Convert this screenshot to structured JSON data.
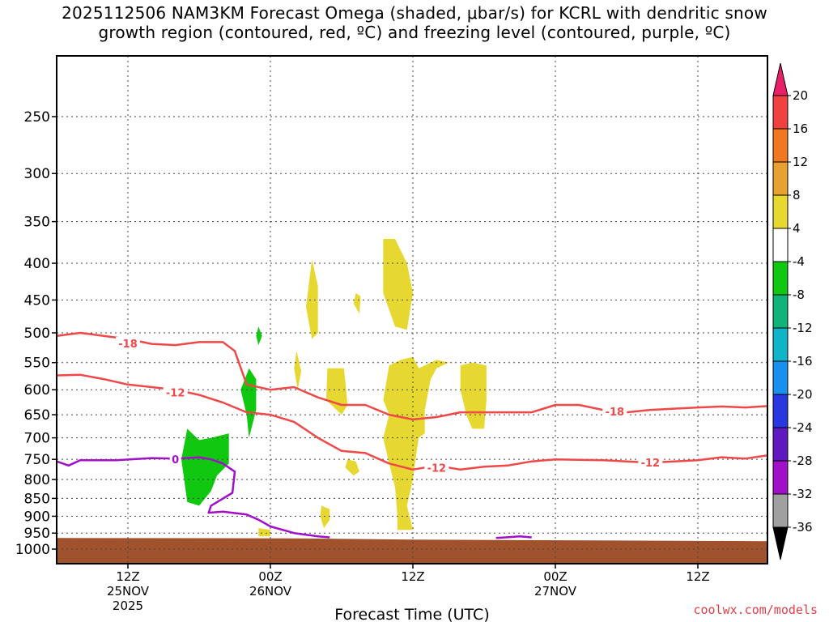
{
  "title_line1": "2025112506 NAM3KM Forecast Omega (shaded, μbar/s) for KCRL with dendritic snow",
  "title_line2": "growth region (contoured, red, ºC) and freezing level (contoured, purple, ºC)",
  "footer": "coolwx.com/models",
  "chart_data": {
    "type": "time-height cross section",
    "xlabel": "Forecast Time (UTC)",
    "ylabel": "",
    "y_scale": "log (pressure, hPa, inverted)",
    "y_ticks": [
      250,
      300,
      350,
      400,
      450,
      500,
      550,
      600,
      650,
      700,
      750,
      800,
      850,
      900,
      950,
      1000
    ],
    "x_ticks": [
      {
        "hour": 6,
        "lines": [
          "12Z",
          "25NOV",
          "2025"
        ]
      },
      {
        "hour": 18,
        "lines": [
          "00Z",
          "26NOV"
        ]
      },
      {
        "hour": 30,
        "lines": [
          "12Z"
        ]
      },
      {
        "hour": 42,
        "lines": [
          "00Z",
          "27NOV"
        ]
      },
      {
        "hour": 54,
        "lines": [
          "12Z"
        ]
      }
    ],
    "grid": "dotted",
    "colorbar": {
      "labels": [
        "20",
        "16",
        "12",
        "8",
        "4",
        "-4",
        "-8",
        "-12",
        "-16",
        "-20",
        "-24",
        "-28",
        "-32",
        "-36"
      ],
      "colors": [
        "#e8206a",
        "#f04040",
        "#f07820",
        "#e8a030",
        "#e6d830",
        "#ffffff",
        "#10c810",
        "#10b478",
        "#10b4c8",
        "#1890f0",
        "#2838e0",
        "#6018c0",
        "#a010c8",
        "#a0a0a0",
        "#000000"
      ]
    },
    "contours": [
      {
        "name": "-18",
        "color": "#f04848",
        "points": [
          [
            0,
            505
          ],
          [
            2,
            500
          ],
          [
            6,
            510
          ],
          [
            8,
            518
          ],
          [
            10,
            520
          ],
          [
            12,
            515
          ],
          [
            14,
            515
          ],
          [
            15,
            530
          ],
          [
            16,
            590
          ],
          [
            18,
            600
          ],
          [
            20,
            595
          ],
          [
            22,
            615
          ],
          [
            24,
            630
          ],
          [
            26,
            630
          ],
          [
            28,
            650
          ],
          [
            30,
            660
          ],
          [
            32,
            655
          ],
          [
            34,
            645
          ],
          [
            36,
            645
          ],
          [
            40,
            645
          ],
          [
            42,
            630
          ],
          [
            44,
            630
          ],
          [
            46,
            640
          ],
          [
            48,
            645
          ],
          [
            50,
            640
          ],
          [
            54,
            635
          ],
          [
            56,
            633
          ],
          [
            58,
            635
          ],
          [
            60,
            632
          ]
        ],
        "labels": [
          [
            6,
            517
          ],
          [
            47,
            643
          ]
        ]
      },
      {
        "name": "-12",
        "color": "#f04848",
        "points": [
          [
            0,
            573
          ],
          [
            2,
            572
          ],
          [
            4,
            580
          ],
          [
            6,
            590
          ],
          [
            8,
            595
          ],
          [
            10,
            600
          ],
          [
            12,
            610
          ],
          [
            14,
            625
          ],
          [
            16,
            645
          ],
          [
            18,
            650
          ],
          [
            20,
            665
          ],
          [
            22,
            700
          ],
          [
            24,
            730
          ],
          [
            26,
            735
          ],
          [
            28,
            760
          ],
          [
            30,
            775
          ],
          [
            32,
            765
          ],
          [
            34,
            775
          ],
          [
            36,
            768
          ],
          [
            38,
            765
          ],
          [
            40,
            755
          ],
          [
            42,
            750
          ],
          [
            46,
            752
          ],
          [
            50,
            758
          ],
          [
            54,
            752
          ],
          [
            56,
            745
          ],
          [
            58,
            748
          ],
          [
            60,
            740
          ]
        ],
        "labels": [
          [
            10,
            605
          ],
          [
            32,
            770
          ],
          [
            50,
            757
          ]
        ]
      },
      {
        "name": "0",
        "color": "#a010c8",
        "points": [
          [
            0,
            755
          ],
          [
            1,
            765
          ],
          [
            2,
            752
          ],
          [
            5,
            752
          ],
          [
            8,
            747
          ],
          [
            10,
            748
          ],
          [
            12,
            745
          ],
          [
            13,
            750
          ],
          [
            14,
            760
          ],
          [
            15,
            780
          ],
          [
            14.8,
            835
          ],
          [
            13,
            870
          ],
          [
            12.8,
            890
          ],
          [
            14,
            887
          ],
          [
            16,
            895
          ],
          [
            17,
            910
          ],
          [
            18,
            930
          ],
          [
            20,
            950
          ],
          [
            22,
            960
          ],
          [
            23,
            963
          ]
        ],
        "labels": [
          [
            10,
            750
          ]
        ]
      },
      {
        "name": "0",
        "color": "#a010c8",
        "points": [
          [
            37,
            965
          ],
          [
            39,
            960
          ],
          [
            40,
            963
          ]
        ],
        "labels": []
      }
    ],
    "shaded_regions": [
      {
        "value": "-4 to -8",
        "color": "#10c810",
        "points": [
          [
            11,
            680
          ],
          [
            10.5,
            750
          ],
          [
            11,
            860
          ],
          [
            12,
            870
          ],
          [
            13,
            830
          ],
          [
            13.5,
            790
          ],
          [
            14.5,
            760
          ],
          [
            14.5,
            690
          ],
          [
            13,
            700
          ],
          [
            12,
            705
          ]
        ]
      },
      {
        "value": "-4 to -8",
        "color": "#10c810",
        "points": [
          [
            15.5,
            600
          ],
          [
            16,
            650
          ],
          [
            16.2,
            700
          ],
          [
            16.8,
            640
          ],
          [
            16.8,
            580
          ],
          [
            16.2,
            560
          ]
        ]
      },
      {
        "value": "-4 to -8",
        "color": "#10c810",
        "points": [
          [
            17,
            490
          ],
          [
            16.8,
            505
          ],
          [
            17,
            520
          ],
          [
            17.3,
            505
          ]
        ]
      },
      {
        "value": "4 to 8",
        "color": "#e6d830",
        "points": [
          [
            21.5,
            395
          ],
          [
            21,
            460
          ],
          [
            21.5,
            510
          ],
          [
            22,
            500
          ],
          [
            22,
            430
          ]
        ]
      },
      {
        "value": "4 to 8",
        "color": "#e6d830",
        "points": [
          [
            27.5,
            370
          ],
          [
            27.5,
            440
          ],
          [
            28.5,
            490
          ],
          [
            29.5,
            495
          ],
          [
            30,
            440
          ],
          [
            29.5,
            400
          ],
          [
            28.5,
            370
          ]
        ]
      },
      {
        "value": "4 to 8",
        "color": "#e6d830",
        "points": [
          [
            25.2,
            440
          ],
          [
            25,
            455
          ],
          [
            25.5,
            470
          ],
          [
            25.6,
            445
          ]
        ]
      },
      {
        "value": "4 to 8",
        "color": "#e6d830",
        "points": [
          [
            20.2,
            530
          ],
          [
            20,
            560
          ],
          [
            20.3,
            600
          ],
          [
            20.6,
            565
          ]
        ]
      },
      {
        "value": "4 to 8",
        "color": "#e6d830",
        "points": [
          [
            22.8,
            560
          ],
          [
            22.7,
            620
          ],
          [
            24,
            650
          ],
          [
            24.5,
            630
          ],
          [
            24.2,
            560
          ]
        ]
      },
      {
        "value": "4 to 8",
        "color": "#e6d830",
        "points": [
          [
            28,
            555
          ],
          [
            27.5,
            620
          ],
          [
            28,
            650
          ],
          [
            27.5,
            700
          ],
          [
            28,
            760
          ],
          [
            28.5,
            820
          ],
          [
            28.7,
            900
          ],
          [
            28.7,
            940
          ],
          [
            30,
            940
          ],
          [
            29.5,
            870
          ],
          [
            30,
            800
          ],
          [
            30.3,
            735
          ],
          [
            30.5,
            700
          ],
          [
            31,
            690
          ],
          [
            31,
            640
          ],
          [
            31.5,
            580
          ],
          [
            32,
            560
          ],
          [
            33,
            550
          ],
          [
            32,
            545
          ],
          [
            30.5,
            560
          ],
          [
            30,
            540
          ],
          [
            29,
            545
          ]
        ]
      },
      {
        "value": "4 to 8",
        "color": "#e6d830",
        "points": [
          [
            34,
            555
          ],
          [
            34,
            600
          ],
          [
            34.5,
            650
          ],
          [
            35,
            680
          ],
          [
            36,
            680
          ],
          [
            36.2,
            620
          ],
          [
            36.2,
            555
          ],
          [
            35,
            550
          ]
        ]
      },
      {
        "value": "4 to 8",
        "color": "#e6d830",
        "points": [
          [
            24.5,
            750
          ],
          [
            24.3,
            770
          ],
          [
            25,
            790
          ],
          [
            25.5,
            780
          ],
          [
            25.2,
            755
          ]
        ]
      },
      {
        "value": "4 to 8",
        "color": "#e6d830",
        "points": [
          [
            22.3,
            870
          ],
          [
            22.2,
            900
          ],
          [
            22.5,
            935
          ],
          [
            23,
            910
          ],
          [
            23,
            880
          ]
        ]
      },
      {
        "value": "4 to 8",
        "color": "#e6d830",
        "points": [
          [
            17,
            935
          ],
          [
            17,
            960
          ],
          [
            18,
            960
          ],
          [
            18,
            940
          ]
        ]
      }
    ],
    "terrain": {
      "color": "#a0522d",
      "surface": [
        [
          0,
          965
        ],
        [
          20,
          966
        ],
        [
          30,
          970
        ],
        [
          60,
          975
        ]
      ]
    }
  }
}
